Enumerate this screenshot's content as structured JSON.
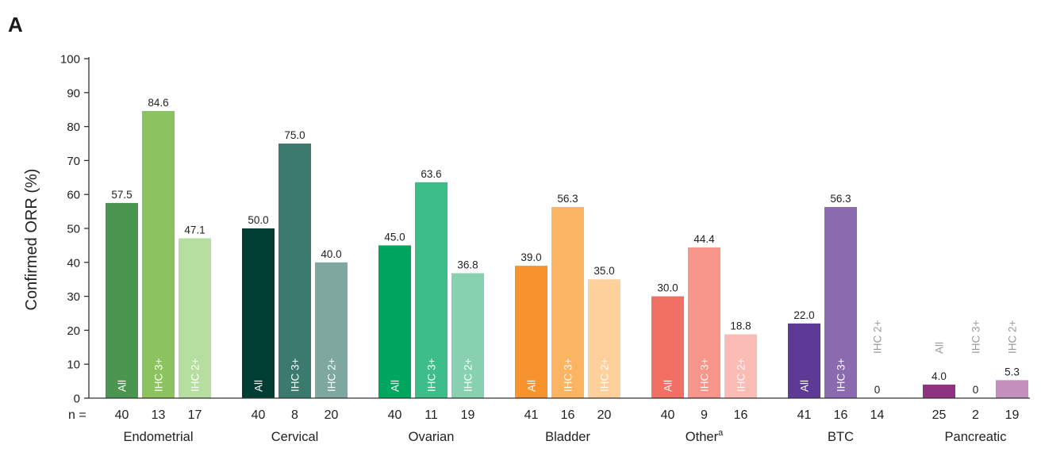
{
  "panel_label": "A",
  "chart_data": {
    "type": "bar",
    "ylabel": "Confirmed ORR (%)",
    "ylim": [
      0,
      100
    ],
    "yticks": [
      0,
      10,
      20,
      30,
      40,
      50,
      60,
      70,
      80,
      90,
      100
    ],
    "n_label": "n =",
    "groups": [
      {
        "name": "Endometrial",
        "name_sup": "",
        "bars": [
          {
            "label": "All",
            "value": 57.5,
            "value_text": "57.5",
            "n": "40",
            "color": "#4a9650"
          },
          {
            "label": "IHC 3+",
            "value": 84.6,
            "value_text": "84.6",
            "n": "13",
            "color": "#8cc35f"
          },
          {
            "label": "IHC 2+",
            "value": 47.1,
            "value_text": "47.1",
            "n": "17",
            "color": "#b6dea0"
          }
        ]
      },
      {
        "name": "Cervical",
        "name_sup": "",
        "bars": [
          {
            "label": "All",
            "value": 50.0,
            "value_text": "50.0",
            "n": "40",
            "color": "#003d32"
          },
          {
            "label": "IHC 3+",
            "value": 75.0,
            "value_text": "75.0",
            "n": "8",
            "color": "#3c7a6d"
          },
          {
            "label": "IHC 2+",
            "value": 40.0,
            "value_text": "40.0",
            "n": "20",
            "color": "#7ea7a0"
          }
        ]
      },
      {
        "name": "Ovarian",
        "name_sup": "",
        "bars": [
          {
            "label": "All",
            "value": 45.0,
            "value_text": "45.0",
            "n": "40",
            "color": "#00a65e"
          },
          {
            "label": "IHC 3+",
            "value": 63.6,
            "value_text": "63.6",
            "n": "11",
            "color": "#3dbd88"
          },
          {
            "label": "IHC 2+",
            "value": 36.8,
            "value_text": "36.8",
            "n": "19",
            "color": "#88d1b0"
          }
        ]
      },
      {
        "name": "Bladder",
        "name_sup": "",
        "bars": [
          {
            "label": "All",
            "value": 39.0,
            "value_text": "39.0",
            "n": "41",
            "color": "#f7932f"
          },
          {
            "label": "IHC 3+",
            "value": 56.3,
            "value_text": "56.3",
            "n": "16",
            "color": "#fbb461"
          },
          {
            "label": "IHC 2+",
            "value": 35.0,
            "value_text": "35.0",
            "n": "20",
            "color": "#fdd09c"
          }
        ]
      },
      {
        "name": "Other",
        "name_sup": "a",
        "bars": [
          {
            "label": "All",
            "value": 30.0,
            "value_text": "30.0",
            "n": "40",
            "color": "#f26f63"
          },
          {
            "label": "IHC 3+",
            "value": 44.4,
            "value_text": "44.4",
            "n": "9",
            "color": "#f7958a"
          },
          {
            "label": "IHC 2+",
            "value": 18.8,
            "value_text": "18.8",
            "n": "16",
            "color": "#fbbcb5"
          }
        ]
      },
      {
        "name": "BTC",
        "name_sup": "",
        "bars": [
          {
            "label": "All",
            "value": 22.0,
            "value_text": "22.0",
            "n": "41",
            "color": "#5c3a96"
          },
          {
            "label": "IHC 3+",
            "value": 56.3,
            "value_text": "56.3",
            "n": "16",
            "color": "#8b6bb0"
          },
          {
            "label": "IHC 2+",
            "value": 0,
            "value_text": "0",
            "n": "14",
            "color": "#b9a8d1"
          }
        ]
      },
      {
        "name": "Pancreatic",
        "name_sup": "",
        "bars": [
          {
            "label": "All",
            "value": 4.0,
            "value_text": "4.0",
            "n": "25",
            "color": "#8e3282"
          },
          {
            "label": "IHC 3+",
            "value": 0,
            "value_text": "0",
            "n": "2",
            "color": "#b06fa6"
          },
          {
            "label": "IHC 2+",
            "value": 5.3,
            "value_text": "5.3",
            "n": "19",
            "color": "#c48fbd"
          }
        ]
      }
    ]
  }
}
